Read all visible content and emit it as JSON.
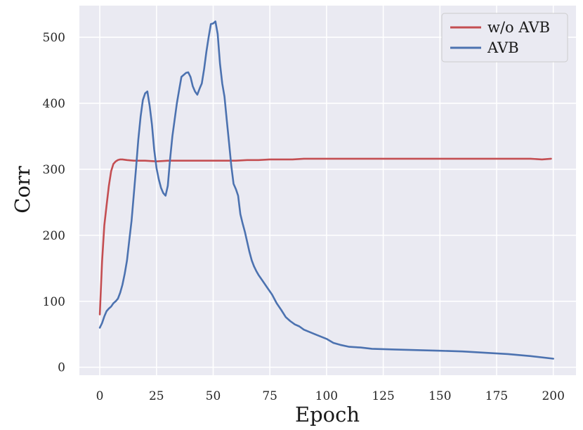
{
  "chart_data": {
    "type": "line",
    "title": "",
    "xlabel": "Epoch",
    "ylabel": "Corr",
    "xlim": [
      -9,
      210
    ],
    "ylim": [
      -12,
      548
    ],
    "xticks": [
      0,
      25,
      50,
      75,
      100,
      125,
      150,
      175,
      200
    ],
    "yticks": [
      0,
      100,
      200,
      300,
      400,
      500
    ],
    "grid": true,
    "legend_position": "top-right",
    "colors": {
      "background": "#EAEAF2",
      "grid": "#FFFFFF",
      "w/o AVB": "#C44E52",
      "AVB": "#4C72B0"
    },
    "series": [
      {
        "name": "w/o AVB",
        "color": "#C44E52",
        "x": [
          0,
          1,
          2,
          3,
          4,
          5,
          6,
          7,
          8,
          9,
          10,
          12,
          15,
          20,
          25,
          30,
          35,
          40,
          45,
          50,
          55,
          60,
          65,
          70,
          75,
          80,
          85,
          90,
          95,
          100,
          105,
          110,
          115,
          120,
          125,
          130,
          135,
          140,
          145,
          150,
          155,
          160,
          165,
          170,
          175,
          180,
          185,
          190,
          195,
          199
        ],
        "y": [
          80,
          160,
          215,
          245,
          275,
          297,
          308,
          312,
          314,
          315,
          315,
          314,
          313,
          313,
          312,
          313,
          313,
          313,
          313,
          313,
          313,
          313,
          314,
          314,
          315,
          315,
          315,
          316,
          316,
          316,
          316,
          316,
          316,
          316,
          316,
          316,
          316,
          316,
          316,
          316,
          316,
          316,
          316,
          316,
          316,
          316,
          316,
          316,
          315,
          316
        ]
      },
      {
        "name": "AVB",
        "color": "#4C72B0",
        "x": [
          0,
          1,
          2,
          3,
          4,
          5,
          6,
          7,
          8,
          9,
          10,
          11,
          12,
          13,
          14,
          15,
          16,
          17,
          18,
          19,
          20,
          21,
          22,
          23,
          24,
          25,
          26,
          27,
          28,
          29,
          30,
          31,
          32,
          33,
          34,
          35,
          36,
          37,
          38,
          39,
          40,
          41,
          42,
          43,
          44,
          45,
          46,
          47,
          48,
          49,
          50,
          51,
          52,
          53,
          54,
          55,
          56,
          57,
          58,
          59,
          60,
          61,
          62,
          63,
          64,
          65,
          66,
          67,
          68,
          69,
          70,
          72,
          74,
          76,
          78,
          80,
          82,
          84,
          86,
          88,
          90,
          95,
          100,
          103,
          106,
          110,
          115,
          120,
          130,
          140,
          150,
          160,
          170,
          180,
          190,
          200
        ],
        "y": [
          60,
          67,
          77,
          85,
          89,
          92,
          97,
          100,
          104,
          113,
          125,
          142,
          162,
          192,
          222,
          262,
          302,
          345,
          380,
          405,
          415,
          418,
          396,
          368,
          330,
          302,
          285,
          272,
          264,
          260,
          275,
          315,
          350,
          375,
          400,
          420,
          440,
          443,
          446,
          447,
          440,
          426,
          418,
          413,
          422,
          430,
          452,
          478,
          500,
          520,
          521,
          524,
          505,
          460,
          430,
          410,
          375,
          340,
          305,
          278,
          270,
          260,
          232,
          218,
          205,
          190,
          175,
          162,
          153,
          146,
          140,
          130,
          120,
          110,
          97,
          87,
          76,
          70,
          65,
          62,
          57,
          50,
          43,
          37,
          34,
          31,
          30,
          28,
          27,
          26,
          25,
          24,
          22,
          20,
          17,
          13
        ]
      }
    ]
  }
}
